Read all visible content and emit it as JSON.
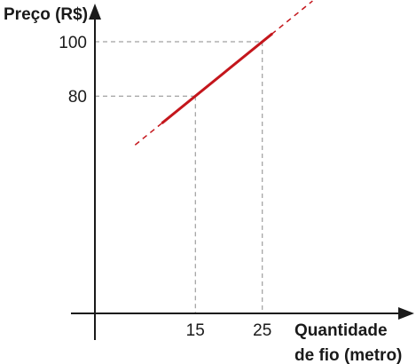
{
  "chart_data": {
    "type": "line",
    "ylabel": "Preço (R$)",
    "xlabel_lines": [
      "Quantidade",
      "de fio (metro)"
    ],
    "x_ticks": [
      15,
      25
    ],
    "y_ticks": [
      80,
      100
    ],
    "series": [
      {
        "x": [
          10,
          26.5
        ],
        "y": [
          70,
          103
        ],
        "color": "#c4161c"
      }
    ],
    "dashed_extension": {
      "x": [
        6,
        32.5
      ],
      "y": [
        62,
        115
      ]
    },
    "reference_points": [
      {
        "x": 15,
        "y": 80
      },
      {
        "x": 25,
        "y": 100
      }
    ],
    "grid": false
  }
}
